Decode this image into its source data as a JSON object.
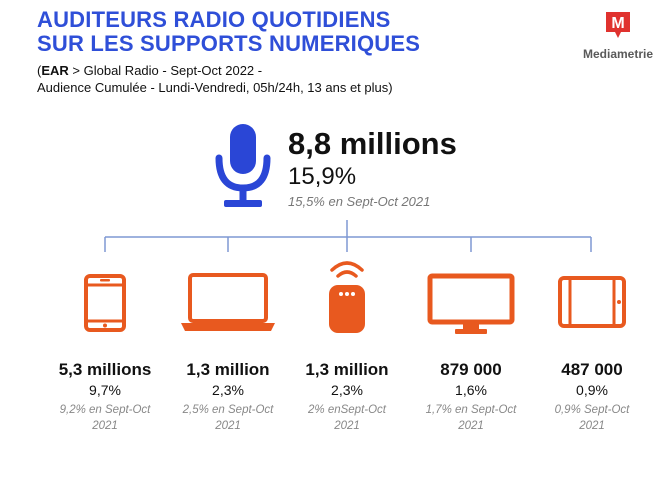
{
  "header": {
    "title_line1": "AUDITEURS RADIO QUOTIDIENS",
    "title_line2": "SUR LES SUPPORTS NUMERIQUES",
    "source_open": "(",
    "source_bold": "EAR",
    "source_rest": " > Global Radio - Sept-Oct 2022  -",
    "source_line2": "Audience Cumulée - Lundi-Vendredi, 05h/24h, 13 ans et plus)"
  },
  "logo": {
    "letter": "M",
    "word": "Mediametrie"
  },
  "colors": {
    "title_blue": "#2f4fd8",
    "icon_orange": "#e8591f",
    "mic_blue": "#2a46d6",
    "line_blue": "#7f98d3",
    "logo_red": "#e0322e"
  },
  "total": {
    "icon": "microphone-icon",
    "audience": "8,8 millions",
    "percent": "15,9%",
    "previous": "15,5% en Sept-Oct 2021"
  },
  "devices": [
    {
      "icon": "smartphone-icon",
      "audience": "5,3 millions",
      "percent": "9,7%",
      "previous_line1": "9,2% en Sept-Oct",
      "previous_line2": "2021"
    },
    {
      "icon": "laptop-icon",
      "audience": "1,3 million",
      "percent": "2,3%",
      "previous_line1": "2,5% en Sept-Oct",
      "previous_line2": "2021"
    },
    {
      "icon": "smart-speaker-icon",
      "audience": "1,3 million",
      "percent": "2,3%",
      "previous_line1": "2% enSept-Oct",
      "previous_line2": "2021"
    },
    {
      "icon": "tv-icon",
      "audience": "879 000",
      "percent": "1,6%",
      "previous_line1": "1,7% en Sept-Oct",
      "previous_line2": "2021"
    },
    {
      "icon": "tablet-icon",
      "audience": "487 000",
      "percent": "0,9%",
      "previous_line1": "0,9% Sept-Oct",
      "previous_line2": "2021"
    }
  ]
}
